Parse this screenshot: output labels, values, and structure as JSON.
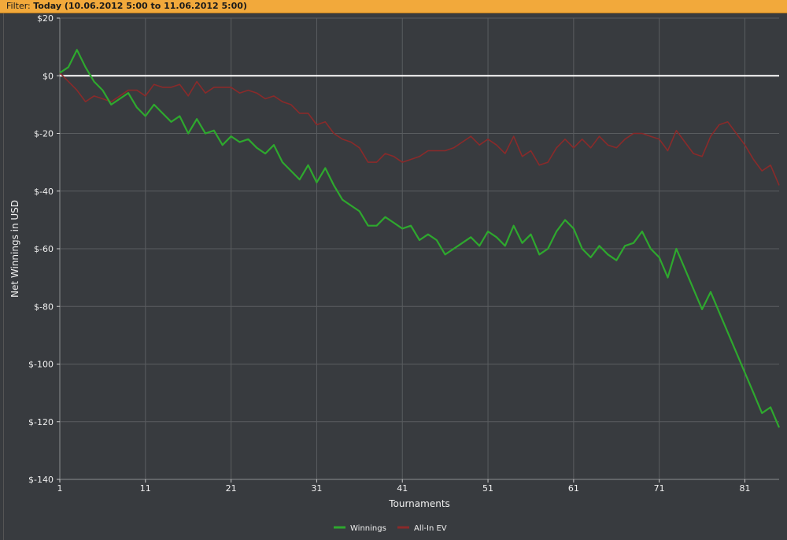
{
  "filter": {
    "label": "Filter:",
    "value": "Today (10.06.2012 5:00 to 11.06.2012 5:00)"
  },
  "colors": {
    "winnings": "#2ea82e",
    "allin_ev": "#8a2a2a",
    "zero_line": "#ffffff",
    "grid": "#5a5d60",
    "plot_bg": "#383b3f",
    "filter_bg": "#f2a93b"
  },
  "chart_data": {
    "type": "line",
    "title": "",
    "xlabel": "Tournaments",
    "ylabel": "Net Winnings in USD",
    "xlim": [
      1,
      85
    ],
    "ylim": [
      -140,
      20
    ],
    "x_ticks": [
      1,
      11,
      21,
      31,
      41,
      51,
      61,
      71,
      81
    ],
    "y_ticks": [
      20,
      0,
      -20,
      -40,
      -60,
      -80,
      -100,
      -120,
      -140
    ],
    "y_tick_labels": [
      "$20",
      "$0",
      "$-20",
      "$-40",
      "$-60",
      "$-80",
      "$-100",
      "$-120",
      "$-140"
    ],
    "grid": true,
    "legend_position": "bottom-center",
    "series": [
      {
        "name": "Winnings",
        "color": "#2ea82e",
        "points": [
          [
            1,
            1
          ],
          [
            2,
            3
          ],
          [
            3,
            9
          ],
          [
            4,
            3
          ],
          [
            5,
            -2
          ],
          [
            6,
            -5
          ],
          [
            7,
            -10
          ],
          [
            8,
            -8
          ],
          [
            9,
            -6
          ],
          [
            10,
            -11
          ],
          [
            11,
            -14
          ],
          [
            12,
            -10
          ],
          [
            13,
            -13
          ],
          [
            14,
            -16
          ],
          [
            15,
            -14
          ],
          [
            16,
            -20
          ],
          [
            17,
            -15
          ],
          [
            18,
            -20
          ],
          [
            19,
            -19
          ],
          [
            20,
            -24
          ],
          [
            21,
            -21
          ],
          [
            22,
            -23
          ],
          [
            23,
            -22
          ],
          [
            24,
            -25
          ],
          [
            25,
            -27
          ],
          [
            26,
            -24
          ],
          [
            27,
            -30
          ],
          [
            28,
            -33
          ],
          [
            29,
            -36
          ],
          [
            30,
            -31
          ],
          [
            31,
            -37
          ],
          [
            32,
            -32
          ],
          [
            33,
            -38
          ],
          [
            34,
            -43
          ],
          [
            35,
            -45
          ],
          [
            36,
            -47
          ],
          [
            37,
            -52
          ],
          [
            38,
            -52
          ],
          [
            39,
            -49
          ],
          [
            40,
            -51
          ],
          [
            41,
            -53
          ],
          [
            42,
            -52
          ],
          [
            43,
            -57
          ],
          [
            44,
            -55
          ],
          [
            45,
            -57
          ],
          [
            46,
            -62
          ],
          [
            47,
            -60
          ],
          [
            48,
            -58
          ],
          [
            49,
            -56
          ],
          [
            50,
            -59
          ],
          [
            51,
            -54
          ],
          [
            52,
            -56
          ],
          [
            53,
            -59
          ],
          [
            54,
            -52
          ],
          [
            55,
            -58
          ],
          [
            56,
            -55
          ],
          [
            57,
            -62
          ],
          [
            58,
            -60
          ],
          [
            59,
            -54
          ],
          [
            60,
            -50
          ],
          [
            61,
            -53
          ],
          [
            62,
            -60
          ],
          [
            63,
            -63
          ],
          [
            64,
            -59
          ],
          [
            65,
            -62
          ],
          [
            66,
            -64
          ],
          [
            67,
            -59
          ],
          [
            68,
            -58
          ],
          [
            69,
            -54
          ],
          [
            70,
            -60
          ],
          [
            71,
            -63
          ],
          [
            72,
            -70
          ],
          [
            73,
            -60
          ],
          [
            74,
            -67
          ],
          [
            75,
            -74
          ],
          [
            76,
            -81
          ],
          [
            77,
            -75
          ],
          [
            78,
            -82
          ],
          [
            79,
            -89
          ],
          [
            80,
            -96
          ],
          [
            81,
            -103
          ],
          [
            82,
            -110
          ],
          [
            83,
            -117
          ],
          [
            84,
            -115
          ],
          [
            85,
            -122
          ]
        ]
      },
      {
        "name": "All-In EV",
        "color": "#8a2a2a",
        "points": [
          [
            1,
            1
          ],
          [
            2,
            -2
          ],
          [
            3,
            -5
          ],
          [
            4,
            -9
          ],
          [
            5,
            -7
          ],
          [
            6,
            -8
          ],
          [
            7,
            -9
          ],
          [
            8,
            -7
          ],
          [
            9,
            -5
          ],
          [
            10,
            -5
          ],
          [
            11,
            -7
          ],
          [
            12,
            -3
          ],
          [
            13,
            -4
          ],
          [
            14,
            -4
          ],
          [
            15,
            -3
          ],
          [
            16,
            -7
          ],
          [
            17,
            -2
          ],
          [
            18,
            -6
          ],
          [
            19,
            -4
          ],
          [
            20,
            -4
          ],
          [
            21,
            -4
          ],
          [
            22,
            -6
          ],
          [
            23,
            -5
          ],
          [
            24,
            -6
          ],
          [
            25,
            -8
          ],
          [
            26,
            -7
          ],
          [
            27,
            -9
          ],
          [
            28,
            -10
          ],
          [
            29,
            -13
          ],
          [
            30,
            -13
          ],
          [
            31,
            -17
          ],
          [
            32,
            -16
          ],
          [
            33,
            -20
          ],
          [
            34,
            -22
          ],
          [
            35,
            -23
          ],
          [
            36,
            -25
          ],
          [
            37,
            -30
          ],
          [
            38,
            -30
          ],
          [
            39,
            -27
          ],
          [
            40,
            -28
          ],
          [
            41,
            -30
          ],
          [
            42,
            -29
          ],
          [
            43,
            -28
          ],
          [
            44,
            -26
          ],
          [
            45,
            -26
          ],
          [
            46,
            -26
          ],
          [
            47,
            -25
          ],
          [
            48,
            -23
          ],
          [
            49,
            -21
          ],
          [
            50,
            -24
          ],
          [
            51,
            -22
          ],
          [
            52,
            -24
          ],
          [
            53,
            -27
          ],
          [
            54,
            -21
          ],
          [
            55,
            -28
          ],
          [
            56,
            -26
          ],
          [
            57,
            -31
          ],
          [
            58,
            -30
          ],
          [
            59,
            -25
          ],
          [
            60,
            -22
          ],
          [
            61,
            -25
          ],
          [
            62,
            -22
          ],
          [
            63,
            -25
          ],
          [
            64,
            -21
          ],
          [
            65,
            -24
          ],
          [
            66,
            -25
          ],
          [
            67,
            -22
          ],
          [
            68,
            -20
          ],
          [
            69,
            -20
          ],
          [
            70,
            -21
          ],
          [
            71,
            -22
          ],
          [
            72,
            -26
          ],
          [
            73,
            -19
          ],
          [
            74,
            -23
          ],
          [
            75,
            -27
          ],
          [
            76,
            -28
          ],
          [
            77,
            -21
          ],
          [
            78,
            -17
          ],
          [
            79,
            -16
          ],
          [
            80,
            -20
          ],
          [
            81,
            -24
          ],
          [
            82,
            -29
          ],
          [
            83,
            -33
          ],
          [
            84,
            -31
          ],
          [
            85,
            -38
          ]
        ]
      }
    ]
  }
}
